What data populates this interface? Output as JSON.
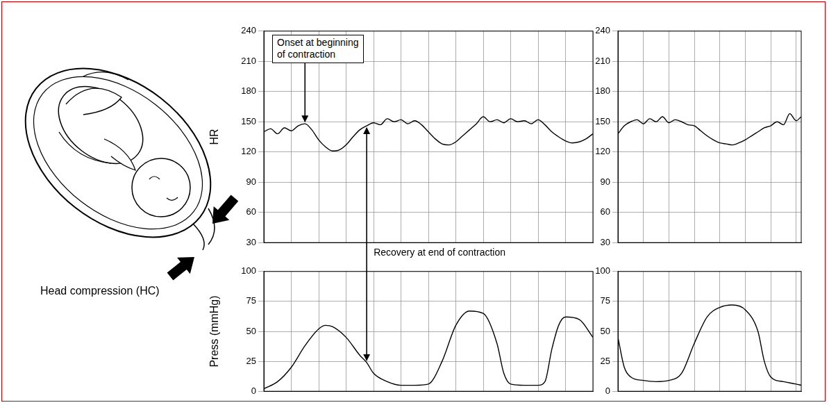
{
  "illustration": {
    "label": "Head compression (HC)"
  },
  "chart_data": [
    {
      "type": "line",
      "y_label": "HR",
      "color": "#000000",
      "grid": true,
      "tick_labels": "y",
      "xlim": [
        0,
        12
      ],
      "xticks": [
        0,
        1,
        2,
        3,
        4,
        5,
        6,
        7,
        8,
        9,
        10,
        11,
        12
      ],
      "ylim": [
        30,
        240
      ],
      "yticks": [
        30,
        60,
        90,
        120,
        150,
        180,
        210,
        240
      ],
      "x": [
        0,
        0.25,
        0.5,
        0.75,
        1,
        1.25,
        1.5,
        1.75,
        2,
        2.25,
        2.5,
        2.75,
        3,
        3.25,
        3.5,
        3.75,
        4,
        4.25,
        4.5,
        4.75,
        5,
        5.25,
        5.5,
        5.75,
        6,
        6.25,
        6.5,
        6.75,
        7,
        7.25,
        7.5,
        7.75,
        8,
        8.25,
        8.5,
        8.75,
        9,
        9.25,
        9.5,
        9.75,
        10,
        10.25,
        10.5,
        10.75,
        11,
        11.25,
        11.5,
        11.75,
        12
      ],
      "values": [
        140,
        143,
        138,
        144,
        141,
        146,
        148,
        142,
        132,
        125,
        121,
        122,
        127,
        135,
        142,
        146,
        149,
        147,
        153,
        150,
        152,
        148,
        151,
        147,
        140,
        133,
        128,
        127,
        130,
        136,
        142,
        148,
        155,
        150,
        152,
        149,
        153,
        150,
        151,
        148,
        152,
        147,
        140,
        135,
        131,
        129,
        130,
        133,
        138
      ],
      "annotations": [
        {
          "text": "Onset at beginning of contraction",
          "x": 1.5,
          "y": 148
        },
        {
          "text": "Recovery at end of contraction",
          "x": 3.75,
          "y": 146
        }
      ]
    },
    {
      "type": "line",
      "color": "#000000",
      "grid": true,
      "tick_labels": "y",
      "xlim": [
        12,
        19.2
      ],
      "xticks": [
        12,
        13,
        14,
        15,
        16,
        17,
        18,
        19
      ],
      "ylim": [
        30,
        240
      ],
      "yticks": [
        30,
        60,
        90,
        120,
        150,
        180,
        210,
        240
      ],
      "x": [
        12,
        12.25,
        12.5,
        12.75,
        13,
        13.25,
        13.5,
        13.75,
        14,
        14.25,
        14.5,
        14.75,
        15,
        15.25,
        15.5,
        15.75,
        16,
        16.25,
        16.5,
        16.75,
        17,
        17.25,
        17.5,
        17.75,
        18,
        18.25,
        18.5,
        18.75,
        19,
        19.2
      ],
      "values": [
        138,
        146,
        150,
        152,
        148,
        153,
        150,
        155,
        149,
        152,
        150,
        147,
        146,
        141,
        136,
        132,
        129,
        128,
        127,
        129,
        132,
        136,
        140,
        144,
        146,
        150,
        147,
        158,
        151,
        155
      ]
    },
    {
      "type": "line",
      "y_label": "Press (mmHg)",
      "color": "#000000",
      "grid": true,
      "tick_labels": "y",
      "xlim": [
        0,
        12
      ],
      "xticks": [
        0,
        1,
        2,
        3,
        4,
        5,
        6,
        7,
        8,
        9,
        10,
        11,
        12
      ],
      "ylim": [
        0,
        100
      ],
      "yticks": [
        0,
        25,
        50,
        75,
        100
      ],
      "x": [
        0,
        0.5,
        1,
        1.5,
        2,
        2.25,
        2.5,
        3,
        3.5,
        3.75,
        4,
        4.5,
        5,
        5.5,
        6,
        6.5,
        7,
        7.5,
        8,
        8.5,
        8.75,
        9,
        9.5,
        10,
        10.25,
        10.5,
        10.75,
        11,
        11.5,
        12
      ],
      "values": [
        2,
        8,
        20,
        38,
        52,
        55,
        54,
        45,
        30,
        24,
        15,
        8,
        5,
        5,
        6,
        25,
        55,
        67,
        65,
        40,
        15,
        6,
        5,
        5,
        8,
        35,
        55,
        62,
        60,
        45
      ],
      "annotations": [
        {
          "x": 3.75,
          "y": 24
        }
      ]
    },
    {
      "type": "line",
      "color": "#000000",
      "grid": true,
      "tick_labels": "y",
      "xlim": [
        12,
        19.2
      ],
      "xticks": [
        12,
        13,
        14,
        15,
        16,
        17,
        18,
        19
      ],
      "ylim": [
        0,
        100
      ],
      "yticks": [
        0,
        25,
        50,
        75,
        100
      ],
      "x": [
        12,
        12.25,
        12.5,
        13,
        13.5,
        14,
        14.5,
        15,
        15.5,
        16,
        16.5,
        17,
        17.5,
        17.75,
        18,
        18.5,
        19,
        19.2
      ],
      "values": [
        45,
        20,
        12,
        9,
        8,
        9,
        15,
        40,
        62,
        70,
        72,
        68,
        50,
        25,
        12,
        8,
        6,
        5
      ]
    }
  ]
}
